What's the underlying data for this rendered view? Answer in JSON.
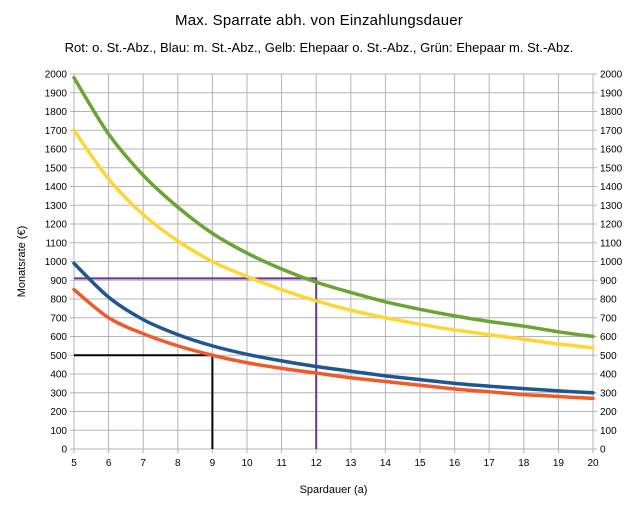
{
  "chart_data": {
    "type": "line",
    "title": "Max. Sparrate abh. von Einzahlungsdauer",
    "subtitle": "Rot: o. St.-Abz., Blau: m. St.-Abz., Gelb: Ehepaar o. St.-Abz., Grün: Ehepaar m. St.-Abz.",
    "xlabel": "Spardauer (a)",
    "ylabel": "Monatsrate (€)",
    "xlim": [
      5,
      20
    ],
    "ylim": [
      0,
      2000
    ],
    "x_ticks": [
      "5",
      "6",
      "7",
      "8",
      "9",
      "10",
      "11",
      "12",
      "13",
      "14",
      "15",
      "16",
      "17",
      "18",
      "19",
      "20"
    ],
    "y_ticks": [
      "0",
      "100",
      "200",
      "300",
      "400",
      "500",
      "600",
      "700",
      "800",
      "900",
      "1000",
      "1100",
      "1200",
      "1300",
      "1400",
      "1500",
      "1600",
      "1700",
      "1800",
      "1900",
      "2000"
    ],
    "grid": true,
    "x": [
      5,
      6,
      7,
      8,
      9,
      10,
      11,
      12,
      13,
      14,
      15,
      16,
      17,
      18,
      19,
      20
    ],
    "series": [
      {
        "color": "#6aa533",
        "values": [
          1980,
          1680,
          1460,
          1290,
          1150,
          1045,
          960,
          890,
          835,
          785,
          745,
          710,
          680,
          655,
          625,
          600
        ]
      },
      {
        "color": "#ffd531",
        "values": [
          1700,
          1440,
          1250,
          1110,
          1000,
          920,
          850,
          790,
          740,
          700,
          665,
          635,
          610,
          585,
          560,
          540
        ]
      },
      {
        "color": "#1f5591",
        "values": [
          990,
          810,
          690,
          610,
          550,
          505,
          470,
          440,
          415,
          390,
          370,
          350,
          335,
          322,
          310,
          300
        ]
      },
      {
        "color": "#f05a28",
        "values": [
          850,
          700,
          615,
          550,
          500,
          460,
          430,
          405,
          380,
          360,
          340,
          320,
          305,
          290,
          280,
          270
        ]
      }
    ],
    "guide_lines": [
      {
        "color": "#000000",
        "x": 9,
        "y": 500
      },
      {
        "color": "#7030a0",
        "x": 12,
        "y": 910
      }
    ]
  }
}
